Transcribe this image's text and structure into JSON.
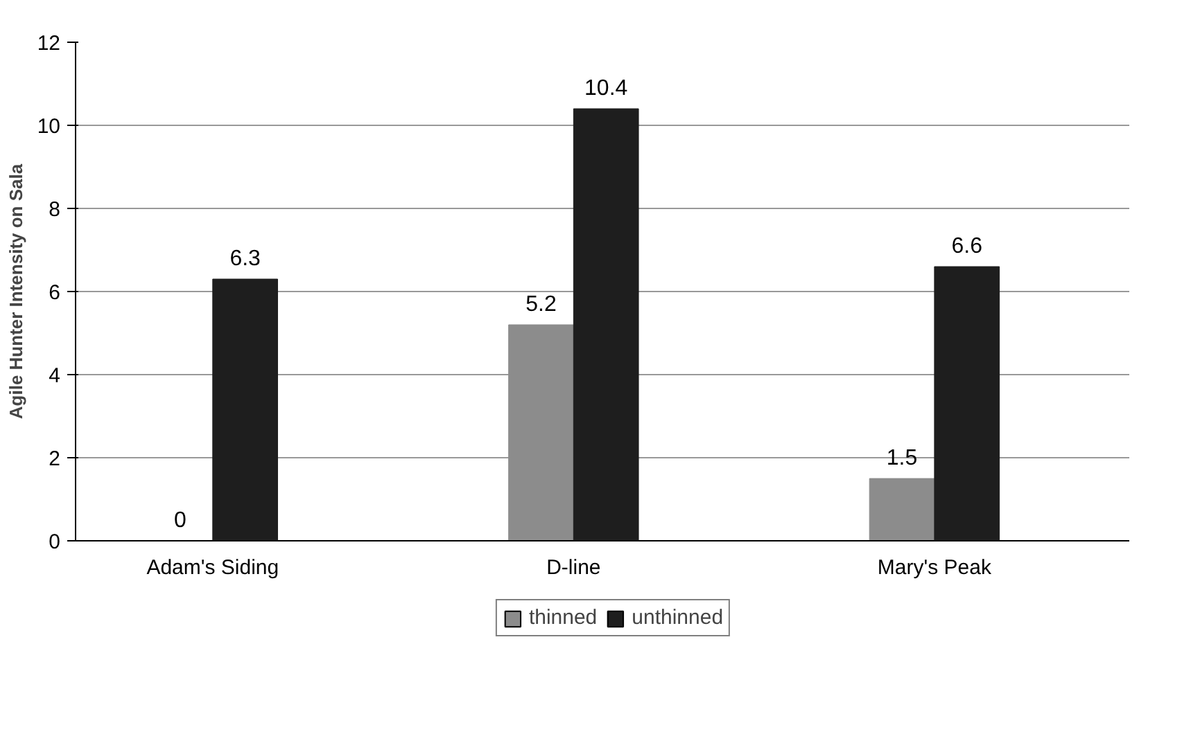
{
  "chart_data": {
    "type": "bar",
    "ylabel": "Agile Hunter Intensity on Sala",
    "categories": [
      "Adam's Siding",
      "D-line",
      "Mary's Peak"
    ],
    "series": [
      {
        "name": "thinned",
        "color": "#8c8c8c",
        "values": [
          0,
          5.2,
          1.5
        ]
      },
      {
        "name": "unthinned",
        "color": "#1e1e1e",
        "values": [
          6.3,
          10.4,
          6.6
        ]
      }
    ],
    "ylim": [
      0,
      12
    ],
    "yticks": [
      0,
      2,
      4,
      6,
      8,
      10,
      12
    ],
    "grid": "y",
    "legend": "bottom",
    "data_labels": true
  }
}
